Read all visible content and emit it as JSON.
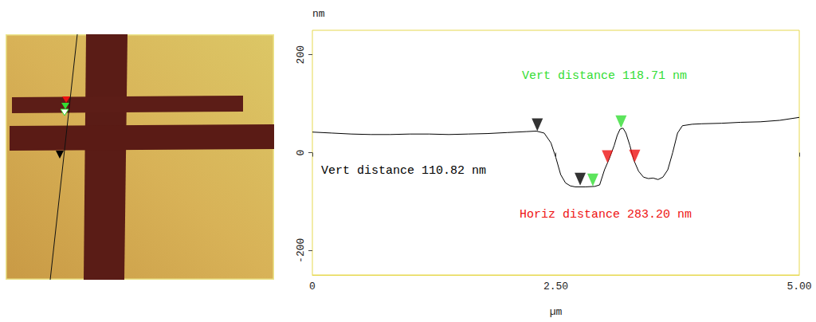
{
  "chart_data": {
    "type": "line",
    "x_label": "µm",
    "y_label": "nm",
    "xlim": [
      0,
      5
    ],
    "xticks": [
      0,
      {
        "value": 2.5,
        "label": "2.50"
      },
      {
        "value": 5,
        "label": "5.00"
      }
    ],
    "ylim": [
      -250,
      250
    ],
    "yticks": [
      -200,
      0,
      200
    ],
    "grid": false,
    "color": "#000000",
    "x": [
      0,
      0.2,
      0.4,
      0.6,
      0.8,
      1.0,
      1.2,
      1.4,
      1.6,
      1.8,
      2.0,
      2.2,
      2.3,
      2.38,
      2.45,
      2.5,
      2.55,
      2.6,
      2.65,
      2.7,
      2.8,
      2.9,
      2.95,
      3.0,
      3.05,
      3.1,
      3.13,
      3.16,
      3.19,
      3.22,
      3.26,
      3.3,
      3.35,
      3.4,
      3.45,
      3.5,
      3.55,
      3.6,
      3.65,
      3.7,
      3.75,
      3.8,
      3.9,
      4.0,
      4.2,
      4.4,
      4.6,
      4.8,
      5.0
    ],
    "values": [
      42,
      40,
      38,
      37,
      37,
      38,
      38,
      37,
      38,
      39,
      41,
      43,
      44,
      40,
      20,
      -10,
      -45,
      -62,
      -68,
      -70,
      -70,
      -69,
      -66,
      -35,
      -12,
      15,
      35,
      48,
      50,
      40,
      15,
      -15,
      -38,
      -50,
      -53,
      -52,
      -55,
      -50,
      -35,
      0,
      40,
      55,
      58,
      59,
      60,
      62,
      63,
      66,
      72
    ],
    "cursors": [
      {
        "color": "#000000",
        "points": [
          {
            "x": 2.31,
            "y": 44
          },
          {
            "x": 2.75,
            "y": -67
          }
        ],
        "annotation": "Vert distance 110.82 nm"
      },
      {
        "color": "#33dd33",
        "points": [
          {
            "x": 2.88,
            "y": -69
          },
          {
            "x": 3.17,
            "y": 50
          }
        ],
        "annotation": "Vert distance 118.71 nm"
      },
      {
        "color": "#ee1111",
        "points": [
          {
            "x": 3.03,
            "y": -21
          },
          {
            "x": 3.31,
            "y": -20
          }
        ],
        "annotation": "Horiz distance 283.20 nm"
      }
    ]
  }
}
